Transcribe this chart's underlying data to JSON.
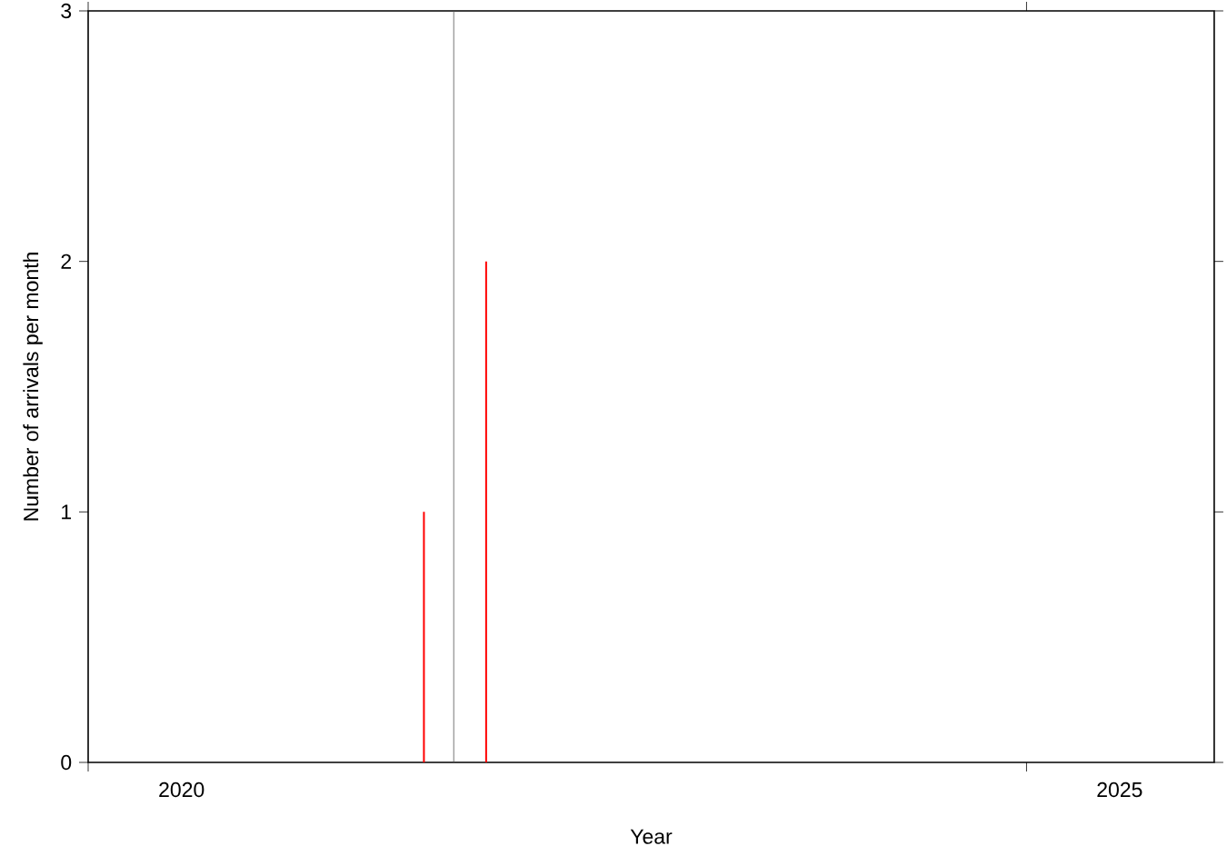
{
  "chart_data": {
    "type": "bar",
    "xlabel": "Year",
    "ylabel": "Number of arrivals per month",
    "x": [
      "2021-10-16",
      "2022-02-14"
    ],
    "series": [
      {
        "color": "#ff0000",
        "values": [
          1,
          2
        ]
      }
    ],
    "xlim": [
      "2020",
      "2026"
    ],
    "xticks": [
      {
        "value": "2020",
        "label": null
      },
      {
        "value": "2020-07",
        "label": "2020"
      },
      {
        "value": "2025",
        "label": null
      },
      {
        "value": "2025-07",
        "label": "2025"
      }
    ],
    "ylim": [
      0,
      3
    ],
    "yticks": [
      0,
      1,
      2,
      3
    ],
    "ref_lines": [
      {
        "axis": "x",
        "value": "2021-12-13",
        "color": "#555555"
      }
    ],
    "grid": false
  }
}
